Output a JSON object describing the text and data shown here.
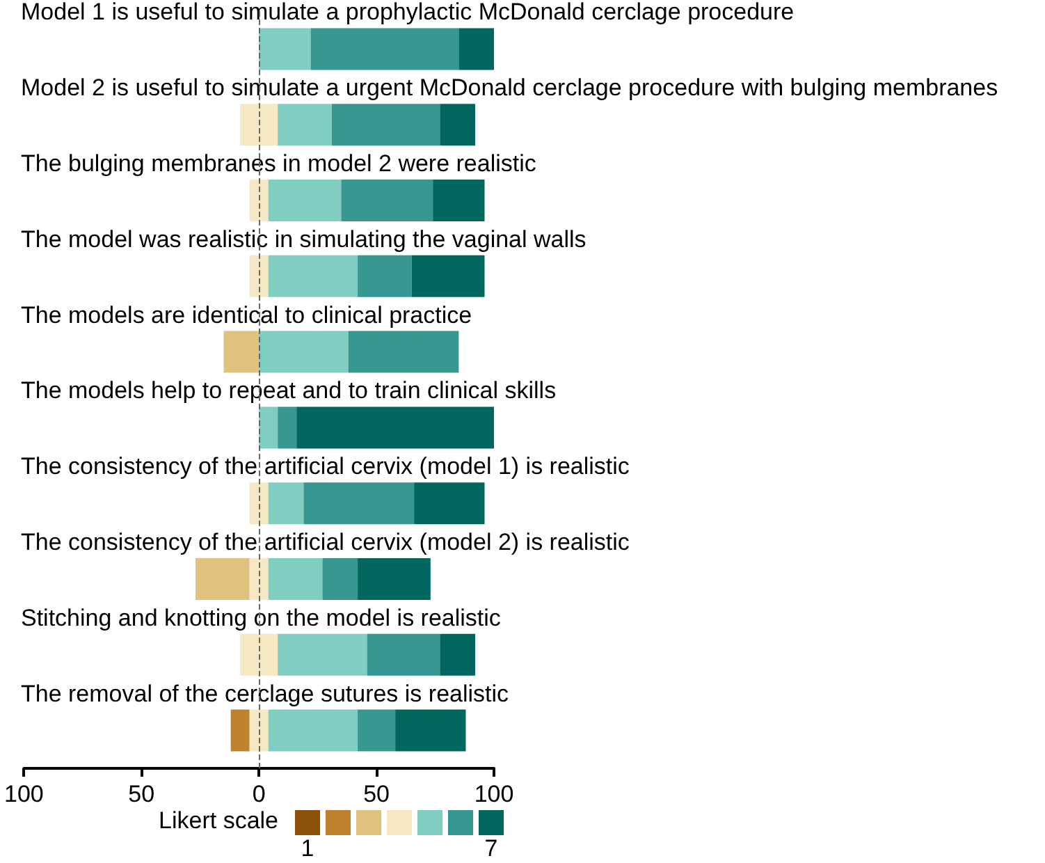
{
  "chart_data": {
    "type": "bar",
    "orientation": "horizontal",
    "legend_title": "Likert scale",
    "legend": "bottom",
    "grid": false,
    "categories": [
      "Model 1 is useful to simulate a prophylactic McDonald cerclage procedure",
      "Model 2 is useful to simulate a urgent McDonald cerclage procedure with bulging membranes",
      "The bulging membranes in model 2 were realistic",
      "The model was realistic in simulating the vaginal walls",
      "The models are identical to clinical practice",
      "The models help to repeat and to train clinical skills",
      "The consistency of the artificial cervix (model 1) is realistic",
      "The consistency of the artificial cervix (model 2) is realistic",
      "Stitching and knotting on the model is realistic",
      "The removal of the cerclage sutures is realistic"
    ],
    "xlim": [
      -100,
      100
    ],
    "xticks": [
      {
        "value": -100,
        "label": "100"
      },
      {
        "value": -50,
        "label": "50"
      },
      0,
      50,
      100
    ],
    "ref_lines": [
      {
        "axis": "x",
        "value": 0,
        "color": "#666666",
        "line_style": "dashed"
      }
    ],
    "series": [
      {
        "name": "1",
        "color": "#8c510a",
        "base": [
          null,
          null,
          null,
          null,
          null,
          null,
          null,
          null,
          null,
          null
        ],
        "values": [
          null,
          null,
          null,
          null,
          null,
          null,
          null,
          null,
          null,
          null
        ]
      },
      {
        "color": "#bf812d",
        "base": [
          null,
          null,
          null,
          null,
          null,
          null,
          null,
          null,
          null,
          -12
        ],
        "values": [
          null,
          null,
          null,
          null,
          null,
          null,
          null,
          null,
          null,
          8
        ]
      },
      {
        "color": "#dfc27d",
        "base": [
          null,
          null,
          null,
          null,
          -15,
          null,
          null,
          -27,
          null,
          null
        ],
        "values": [
          null,
          null,
          null,
          null,
          15,
          null,
          null,
          23,
          null,
          null
        ]
      },
      {
        "color": "#f6e8c3",
        "base": [
          null,
          -8,
          -4,
          -4,
          null,
          null,
          -4,
          -4,
          -8,
          -4
        ],
        "values": [
          null,
          16,
          8,
          8,
          null,
          null,
          8,
          8,
          16,
          8
        ]
      },
      {
        "color": "#80cdc1",
        "base": [
          0,
          8,
          4,
          4,
          0,
          0,
          4,
          4,
          8,
          4
        ],
        "values": [
          22,
          23,
          31,
          38,
          38,
          8,
          15,
          23,
          38,
          38
        ]
      },
      {
        "color": "#35978f",
        "base": [
          22,
          31,
          35,
          42,
          38,
          8,
          19,
          27,
          46,
          42
        ],
        "values": [
          63,
          46,
          39,
          23,
          47,
          8,
          47,
          15,
          31,
          16
        ]
      },
      {
        "name": "7",
        "color": "#01665e",
        "base": [
          85,
          77,
          74,
          65,
          null,
          16,
          66,
          42,
          77,
          58
        ],
        "values": [
          15,
          15,
          22,
          31,
          null,
          84,
          30,
          31,
          15,
          30
        ]
      }
    ]
  }
}
